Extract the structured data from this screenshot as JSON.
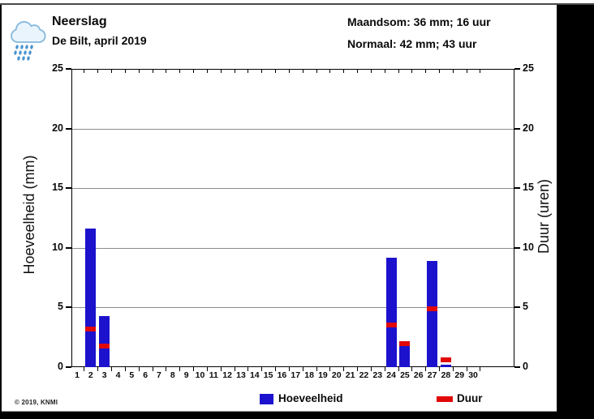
{
  "header": {
    "title": "Neerslag",
    "subtitle": "De Bilt, april 2019",
    "maandsom": "Maandsom: 36 mm; 16 uur",
    "normaal": "Normaal: 42 mm; 43 uur"
  },
  "footer": {
    "copyright": "© 2019, KNMI"
  },
  "legend": {
    "items": [
      {
        "label": "Hoeveelheid",
        "color": "#1c12cd",
        "shape": "square"
      },
      {
        "label": "Duur",
        "color": "#e10808",
        "shape": "dash"
      }
    ]
  },
  "icons": {
    "header_icon": "rain-cloud-icon"
  },
  "colors": {
    "bar": "#1c12cd",
    "duration_mark": "#e10808",
    "grid": "#8c8c8c",
    "axis": "#000000",
    "page_bg": "#ffffff",
    "surround_bg": "#000000",
    "page_border": "#4a4a4a"
  },
  "chart_data": {
    "type": "bar",
    "title": "Neerslag",
    "subtitle": "De Bilt, april 2019",
    "xlabel": "",
    "ylabel_left": "Hoeveelheid (mm)",
    "ylabel_right": "Duur (uren)",
    "ylim": [
      0,
      25
    ],
    "yticks": [
      0,
      5,
      10,
      15,
      20,
      25
    ],
    "grid": true,
    "legend_position": "bottom",
    "categories": [
      1,
      2,
      3,
      4,
      5,
      6,
      7,
      8,
      9,
      10,
      11,
      12,
      13,
      14,
      15,
      16,
      17,
      18,
      19,
      20,
      21,
      22,
      23,
      24,
      25,
      26,
      27,
      28,
      29,
      30
    ],
    "series": [
      {
        "name": "Hoeveelheid",
        "unit": "mm",
        "axis": "left",
        "color": "#1c12cd",
        "style": "bar",
        "values": [
          0,
          11.6,
          4.3,
          0,
          0,
          0,
          0,
          0,
          0,
          0,
          0,
          0,
          0,
          0,
          0,
          0,
          0,
          0,
          0,
          0,
          0,
          0,
          0,
          9.2,
          1.8,
          0,
          8.9,
          0.2,
          0,
          0
        ]
      },
      {
        "name": "Duur",
        "unit": "uren",
        "axis": "right",
        "color": "#e10808",
        "style": "tick-mark",
        "values": [
          0,
          3.2,
          1.8,
          0,
          0,
          0,
          0,
          0,
          0,
          0,
          0,
          0,
          0,
          0,
          0,
          0,
          0,
          0,
          0,
          0,
          0,
          0,
          0,
          3.5,
          2.0,
          0,
          4.9,
          0.6,
          0,
          0
        ]
      }
    ],
    "annotations": {
      "maandsom_mm": 36,
      "maandsom_uur": 16,
      "normaal_mm": 42,
      "normaal_uur": 43
    }
  }
}
